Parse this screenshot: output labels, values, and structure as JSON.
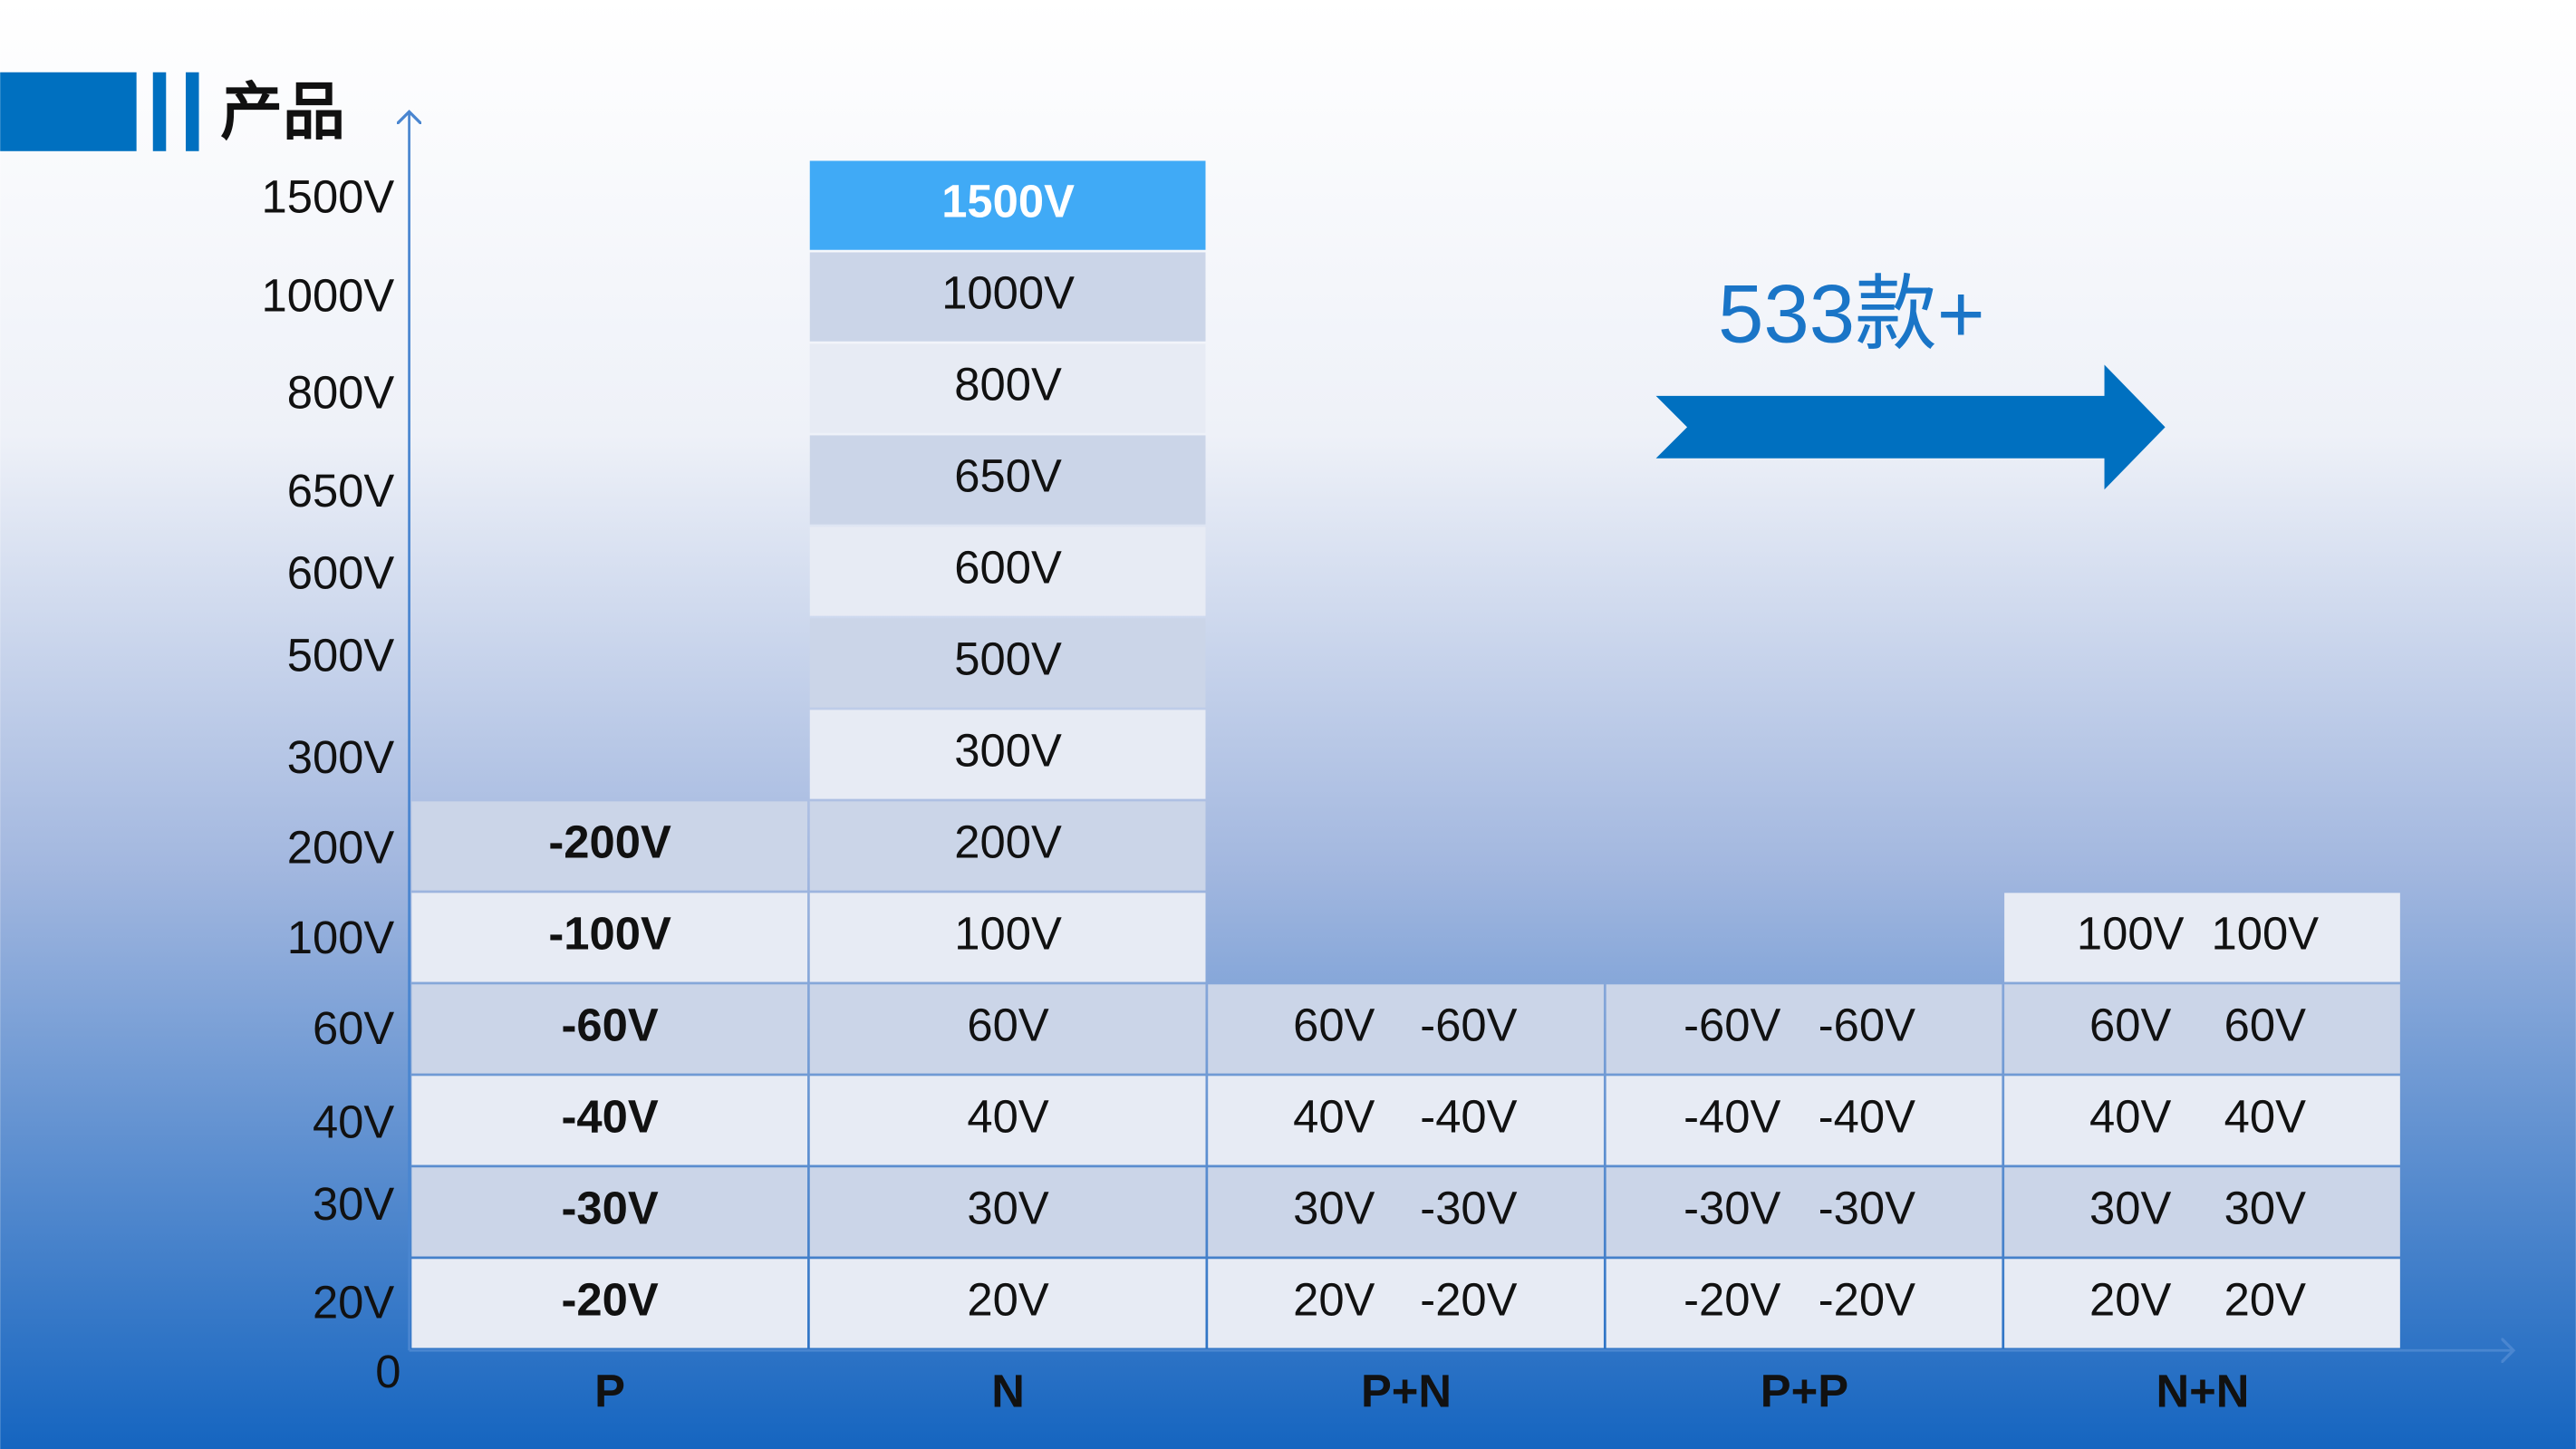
{
  "header": {
    "title": "产品"
  },
  "y_axis": {
    "labels": [
      "1500V",
      "1000V",
      "800V",
      "650V",
      "600V",
      "500V",
      "300V",
      "200V",
      "100V",
      "60V",
      "40V",
      "30V",
      "20V",
      "0"
    ]
  },
  "columns": [
    {
      "label": "P",
      "cells": [
        "-200V",
        "-100V",
        "-60V",
        "-40V",
        "-30V",
        "-20V"
      ]
    },
    {
      "label": "N",
      "cells": [
        "1500V",
        "1000V",
        "800V",
        "650V",
        "600V",
        "500V",
        "300V",
        "200V",
        "100V",
        "60V",
        "40V",
        "30V",
        "20V"
      ]
    },
    {
      "label": "P+N",
      "cells": [
        [
          "60V",
          "-60V"
        ],
        [
          "40V",
          "-40V"
        ],
        [
          "30V",
          "-30V"
        ],
        [
          "20V",
          "-20V"
        ]
      ]
    },
    {
      "label": "P+P",
      "cells": [
        [
          "-60V",
          "-60V"
        ],
        [
          "-40V",
          "-40V"
        ],
        [
          "-30V",
          "-30V"
        ],
        [
          "-20V",
          "-20V"
        ]
      ]
    },
    {
      "label": "N+N",
      "cells": [
        [
          "100V",
          "100V"
        ],
        [
          "60V",
          "60V"
        ],
        [
          "40V",
          "40V"
        ],
        [
          "30V",
          "30V"
        ],
        [
          "20V",
          "20V"
        ]
      ]
    }
  ],
  "callout": "533款+"
}
